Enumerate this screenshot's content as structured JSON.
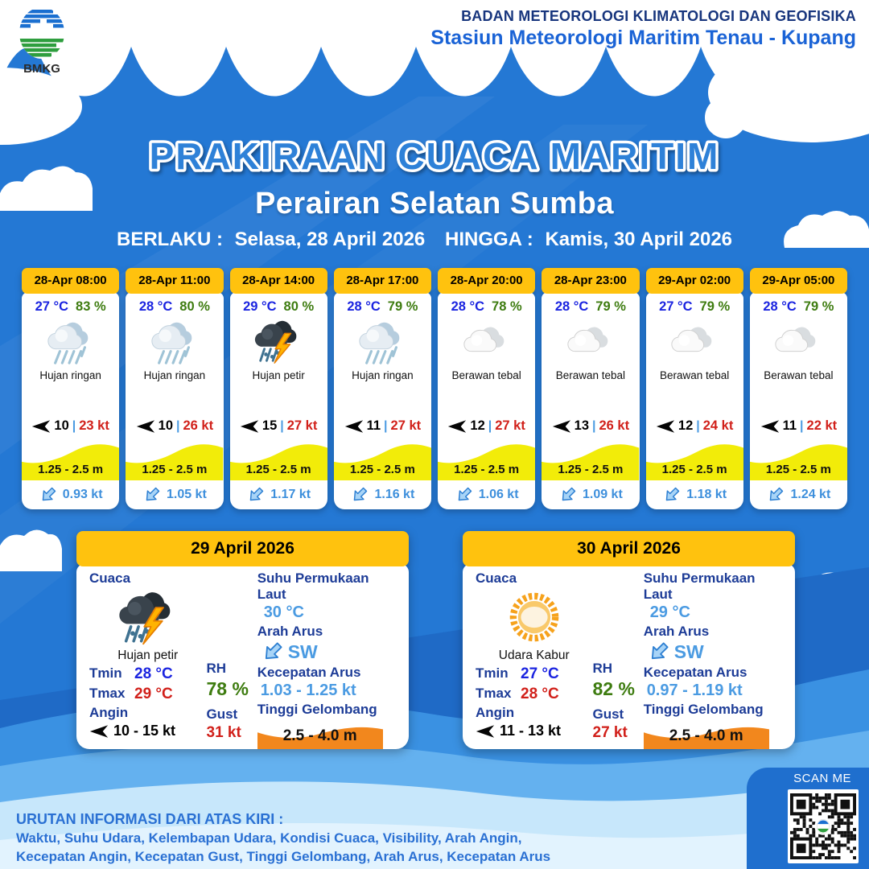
{
  "brand": {
    "agency": "BADAN METEOROLOGI KLIMATOLOGI DAN GEOFISIKA",
    "station": "Stasiun Meteorologi Maritim Tenau - Kupang",
    "logo": "BMKG"
  },
  "title": {
    "heading": "PRAKIRAAN CUACA MARITIM",
    "subheading": "Perairan Selatan Sumba",
    "berlaku_label": "BERLAKU :",
    "berlaku_value": "Selasa, 28 April 2026",
    "hingga_label": "HINGGA :",
    "hingga_value": "Kamis, 30 April 2026"
  },
  "symbols": {
    "pipe": "|"
  },
  "hourly": [
    {
      "time": "28-Apr 08:00",
      "temp": "27 °C",
      "rh": "83 %",
      "condition": "Hujan ringan",
      "wind_speed": "10",
      "gust": "23 kt",
      "wave": "1.25 - 2.5 m",
      "current": "0.93 kt"
    },
    {
      "time": "28-Apr 11:00",
      "temp": "28 °C",
      "rh": "80 %",
      "condition": "Hujan ringan",
      "wind_speed": "10",
      "gust": "26 kt",
      "wave": "1.25 - 2.5 m",
      "current": "1.05 kt"
    },
    {
      "time": "28-Apr 14:00",
      "temp": "29 °C",
      "rh": "80 %",
      "condition": "Hujan petir",
      "wind_speed": "15",
      "gust": "27 kt",
      "wave": "1.25 - 2.5 m",
      "current": "1.17 kt"
    },
    {
      "time": "28-Apr 17:00",
      "temp": "28 °C",
      "rh": "79 %",
      "condition": "Hujan ringan",
      "wind_speed": "11",
      "gust": "27 kt",
      "wave": "1.25 - 2.5 m",
      "current": "1.16 kt"
    },
    {
      "time": "28-Apr 20:00",
      "temp": "28 °C",
      "rh": "78 %",
      "condition": "Berawan tebal",
      "wind_speed": "12",
      "gust": "27 kt",
      "wave": "1.25 - 2.5 m",
      "current": "1.06 kt"
    },
    {
      "time": "28-Apr 23:00",
      "temp": "28 °C",
      "rh": "79 %",
      "condition": "Berawan tebal",
      "wind_speed": "13",
      "gust": "26 kt",
      "wave": "1.25 - 2.5 m",
      "current": "1.09 kt"
    },
    {
      "time": "29-Apr 02:00",
      "temp": "27 °C",
      "rh": "79 %",
      "condition": "Berawan tebal",
      "wind_speed": "12",
      "gust": "24 kt",
      "wave": "1.25 - 2.5 m",
      "current": "1.18 kt"
    },
    {
      "time": "29-Apr 05:00",
      "temp": "28 °C",
      "rh": "79 %",
      "condition": "Berawan tebal",
      "wind_speed": "11",
      "gust": "22 kt",
      "wave": "1.25 - 2.5 m",
      "current": "1.24 kt"
    }
  ],
  "daily_labels": {
    "cuaca": "Cuaca",
    "tmin": "Tmin",
    "tmax": "Tmax",
    "angin": "Angin",
    "rh": "RH",
    "gust": "Gust",
    "sst": "Suhu Permukaan Laut",
    "arah_arus": "Arah Arus",
    "kec_arus": "Kecepatan Arus",
    "gelombang": "Tinggi Gelombang"
  },
  "daily": [
    {
      "date": "29 April 2026",
      "condition": "Hujan petir",
      "tmin": "28 °C",
      "tmax": "29 °C",
      "wind": "10 - 15 kt",
      "rh": "78 %",
      "gust": "31 kt",
      "sst": "30 °C",
      "current_dir": "SW",
      "current_speed": "1.03 - 1.25 kt",
      "wave": "2.5 - 4.0 m"
    },
    {
      "date": "30 April 2026",
      "condition": "Udara Kabur",
      "tmin": "27 °C",
      "tmax": "28 °C",
      "wind": "11 - 13 kt",
      "rh": "82 %",
      "gust": "27 kt",
      "sst": "29 °C",
      "current_dir": "SW",
      "current_speed": "0.97 - 1.19 kt",
      "wave": "2.5 - 4.0 m"
    }
  ],
  "footer": {
    "heading": "URUTAN INFORMASI DARI ATAS KIRI :",
    "line1": "Waktu, Suhu Udara, Kelembapan Udara, Kondisi Cuaca, Visibility, Arah Angin,",
    "line2": "Kecepatan Angin, Kecepatan Gust, Tinggi Gelombang, Arah Arus, Kecepatan Arus",
    "scan_me": "SCAN ME"
  },
  "colors": {
    "bg_blue": "#2478d4",
    "tab_yellow": "#ffc20e",
    "wave_yellow": "#f2ec09",
    "wave_orange": "#f2871d",
    "temp_blue": "#1b24e0",
    "rh_green": "#3e7c10",
    "alert_red": "#d1201a",
    "label_navy": "#1d3c97",
    "light_blue": "#4b9be2",
    "footer_blue": "#2a70d3"
  }
}
